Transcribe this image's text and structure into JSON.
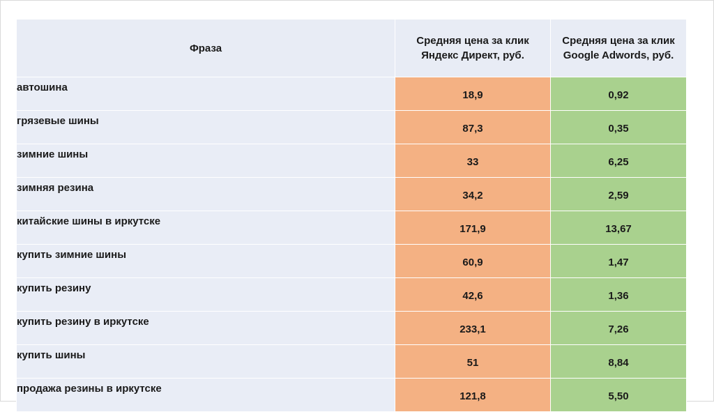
{
  "table": {
    "header": [
      "Фраза",
      "Средняя цена за клик\nЯндекс Директ, руб.",
      "Средняя цена за клик\nGoogle Adwords, руб."
    ],
    "rows": [
      [
        "автошина",
        "18,9",
        "0,92"
      ],
      [
        "грязевые шины",
        "87,3",
        "0,35"
      ],
      [
        "зимние шины",
        "33",
        "6,25"
      ],
      [
        "зимняя резина",
        "34,2",
        "2,59"
      ],
      [
        "китайские шины в иркутске",
        "171,9",
        "13,67"
      ],
      [
        "купить зимние шины",
        "60,9",
        "1,47"
      ],
      [
        "купить резину",
        "42,6",
        "1,36"
      ],
      [
        "купить резину в иркутске",
        "233,1",
        "7,26"
      ],
      [
        "купить шины",
        "51",
        "8,84"
      ],
      [
        "продажа резины в иркутске",
        "121,8",
        "5,50"
      ]
    ]
  }
}
